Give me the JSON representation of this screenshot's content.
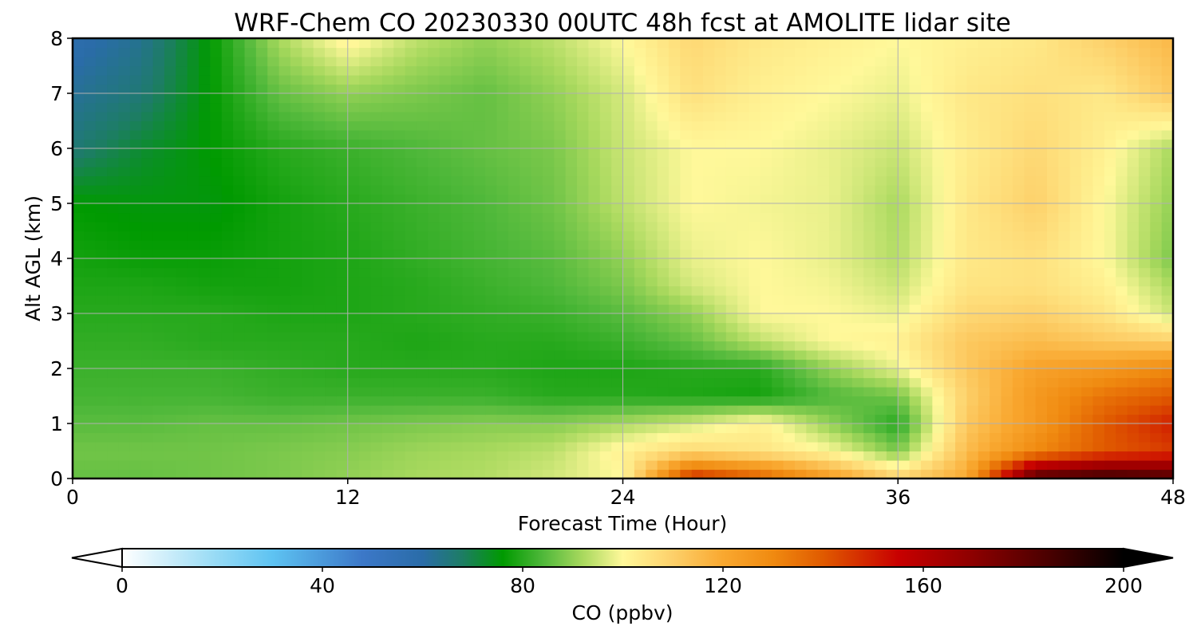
{
  "chart_data": {
    "type": "heatmap",
    "title": "WRF-Chem CO  20230330 00UTC 48h fcst at AMOLITE lidar site",
    "xlabel": "Forecast Time (Hour)",
    "ylabel": "Alt AGL (km)",
    "xlim": [
      0,
      48
    ],
    "ylim": [
      0,
      8
    ],
    "x_ticks": [
      "0",
      "12",
      "24",
      "36",
      "48"
    ],
    "y_ticks": [
      "0",
      "1",
      "2",
      "3",
      "4",
      "5",
      "6",
      "7",
      "8"
    ],
    "grid": true,
    "x": [
      0,
      3,
      6,
      9,
      12,
      15,
      18,
      21,
      24,
      27,
      30,
      33,
      36,
      39,
      42,
      45,
      48
    ],
    "y": [
      0,
      0.5,
      1,
      1.5,
      2,
      2.5,
      3,
      3.5,
      4,
      5,
      6,
      7,
      8
    ],
    "z": [
      [
        86,
        86,
        87,
        88,
        90,
        92,
        93,
        96,
        100,
        150,
        140,
        125,
        110,
        120,
        185,
        190,
        185
      ],
      [
        87,
        87,
        87,
        88,
        89,
        91,
        92,
        94,
        102,
        108,
        105,
        100,
        88,
        115,
        130,
        140,
        145
      ],
      [
        85,
        85,
        86,
        86,
        87,
        88,
        89,
        89,
        92,
        96,
        102,
        90,
        80,
        112,
        125,
        140,
        150
      ],
      [
        83,
        83,
        83,
        82,
        82,
        82,
        82,
        80,
        80,
        79,
        78,
        84,
        87,
        110,
        125,
        135,
        140
      ],
      [
        82,
        82,
        82,
        81,
        80,
        80,
        80,
        79,
        79,
        80,
        80,
        90,
        98,
        112,
        122,
        125,
        130
      ],
      [
        81,
        81,
        80,
        80,
        80,
        79,
        80,
        80,
        82,
        86,
        94,
        100,
        102,
        112,
        115,
        112,
        110
      ],
      [
        80,
        80,
        80,
        79,
        79,
        80,
        81,
        82,
        85,
        90,
        100,
        100,
        98,
        108,
        110,
        105,
        95
      ],
      [
        79,
        79,
        78,
        78,
        79,
        80,
        82,
        84,
        88,
        96,
        100,
        99,
        95,
        105,
        106,
        102,
        92
      ],
      [
        78,
        77,
        77,
        78,
        79,
        81,
        83,
        85,
        90,
        98,
        100,
        98,
        93,
        104,
        106,
        100,
        88
      ],
      [
        76,
        75,
        75,
        78,
        80,
        82,
        84,
        87,
        94,
        100,
        99,
        98,
        92,
        104,
        110,
        100,
        90
      ],
      [
        66,
        72,
        76,
        80,
        82,
        84,
        86,
        88,
        95,
        100,
        100,
        98,
        95,
        103,
        108,
        102,
        92
      ],
      [
        62,
        66,
        76,
        86,
        90,
        88,
        86,
        90,
        96,
        106,
        102,
        100,
        98,
        104,
        106,
        104,
        112
      ],
      [
        58,
        63,
        76,
        92,
        102,
        94,
        90,
        94,
        100,
        108,
        104,
        102,
        100,
        102,
        104,
        110,
        116
      ]
    ],
    "colorbar": {
      "label": "CO  (ppbv)",
      "min": 0,
      "max": 200,
      "extend": "both",
      "ticks": [
        "0",
        "40",
        "80",
        "120",
        "160",
        "200"
      ],
      "stops": [
        {
          "v": 0,
          "c": "#ffffff"
        },
        {
          "v": 18,
          "c": "#9bdcf5"
        },
        {
          "v": 30,
          "c": "#5ec3f2"
        },
        {
          "v": 48,
          "c": "#3c78c8"
        },
        {
          "v": 60,
          "c": "#2a6ca8"
        },
        {
          "v": 68,
          "c": "#1d7d64"
        },
        {
          "v": 76,
          "c": "#009a00"
        },
        {
          "v": 84,
          "c": "#4fb83a"
        },
        {
          "v": 92,
          "c": "#a9d95e"
        },
        {
          "v": 100,
          "c": "#fff89a"
        },
        {
          "v": 110,
          "c": "#fdd06a"
        },
        {
          "v": 120,
          "c": "#f9a830"
        },
        {
          "v": 130,
          "c": "#f08a10"
        },
        {
          "v": 140,
          "c": "#e05a00"
        },
        {
          "v": 155,
          "c": "#c80000"
        },
        {
          "v": 170,
          "c": "#8c0000"
        },
        {
          "v": 185,
          "c": "#4a0000"
        },
        {
          "v": 200,
          "c": "#000000"
        }
      ]
    }
  }
}
